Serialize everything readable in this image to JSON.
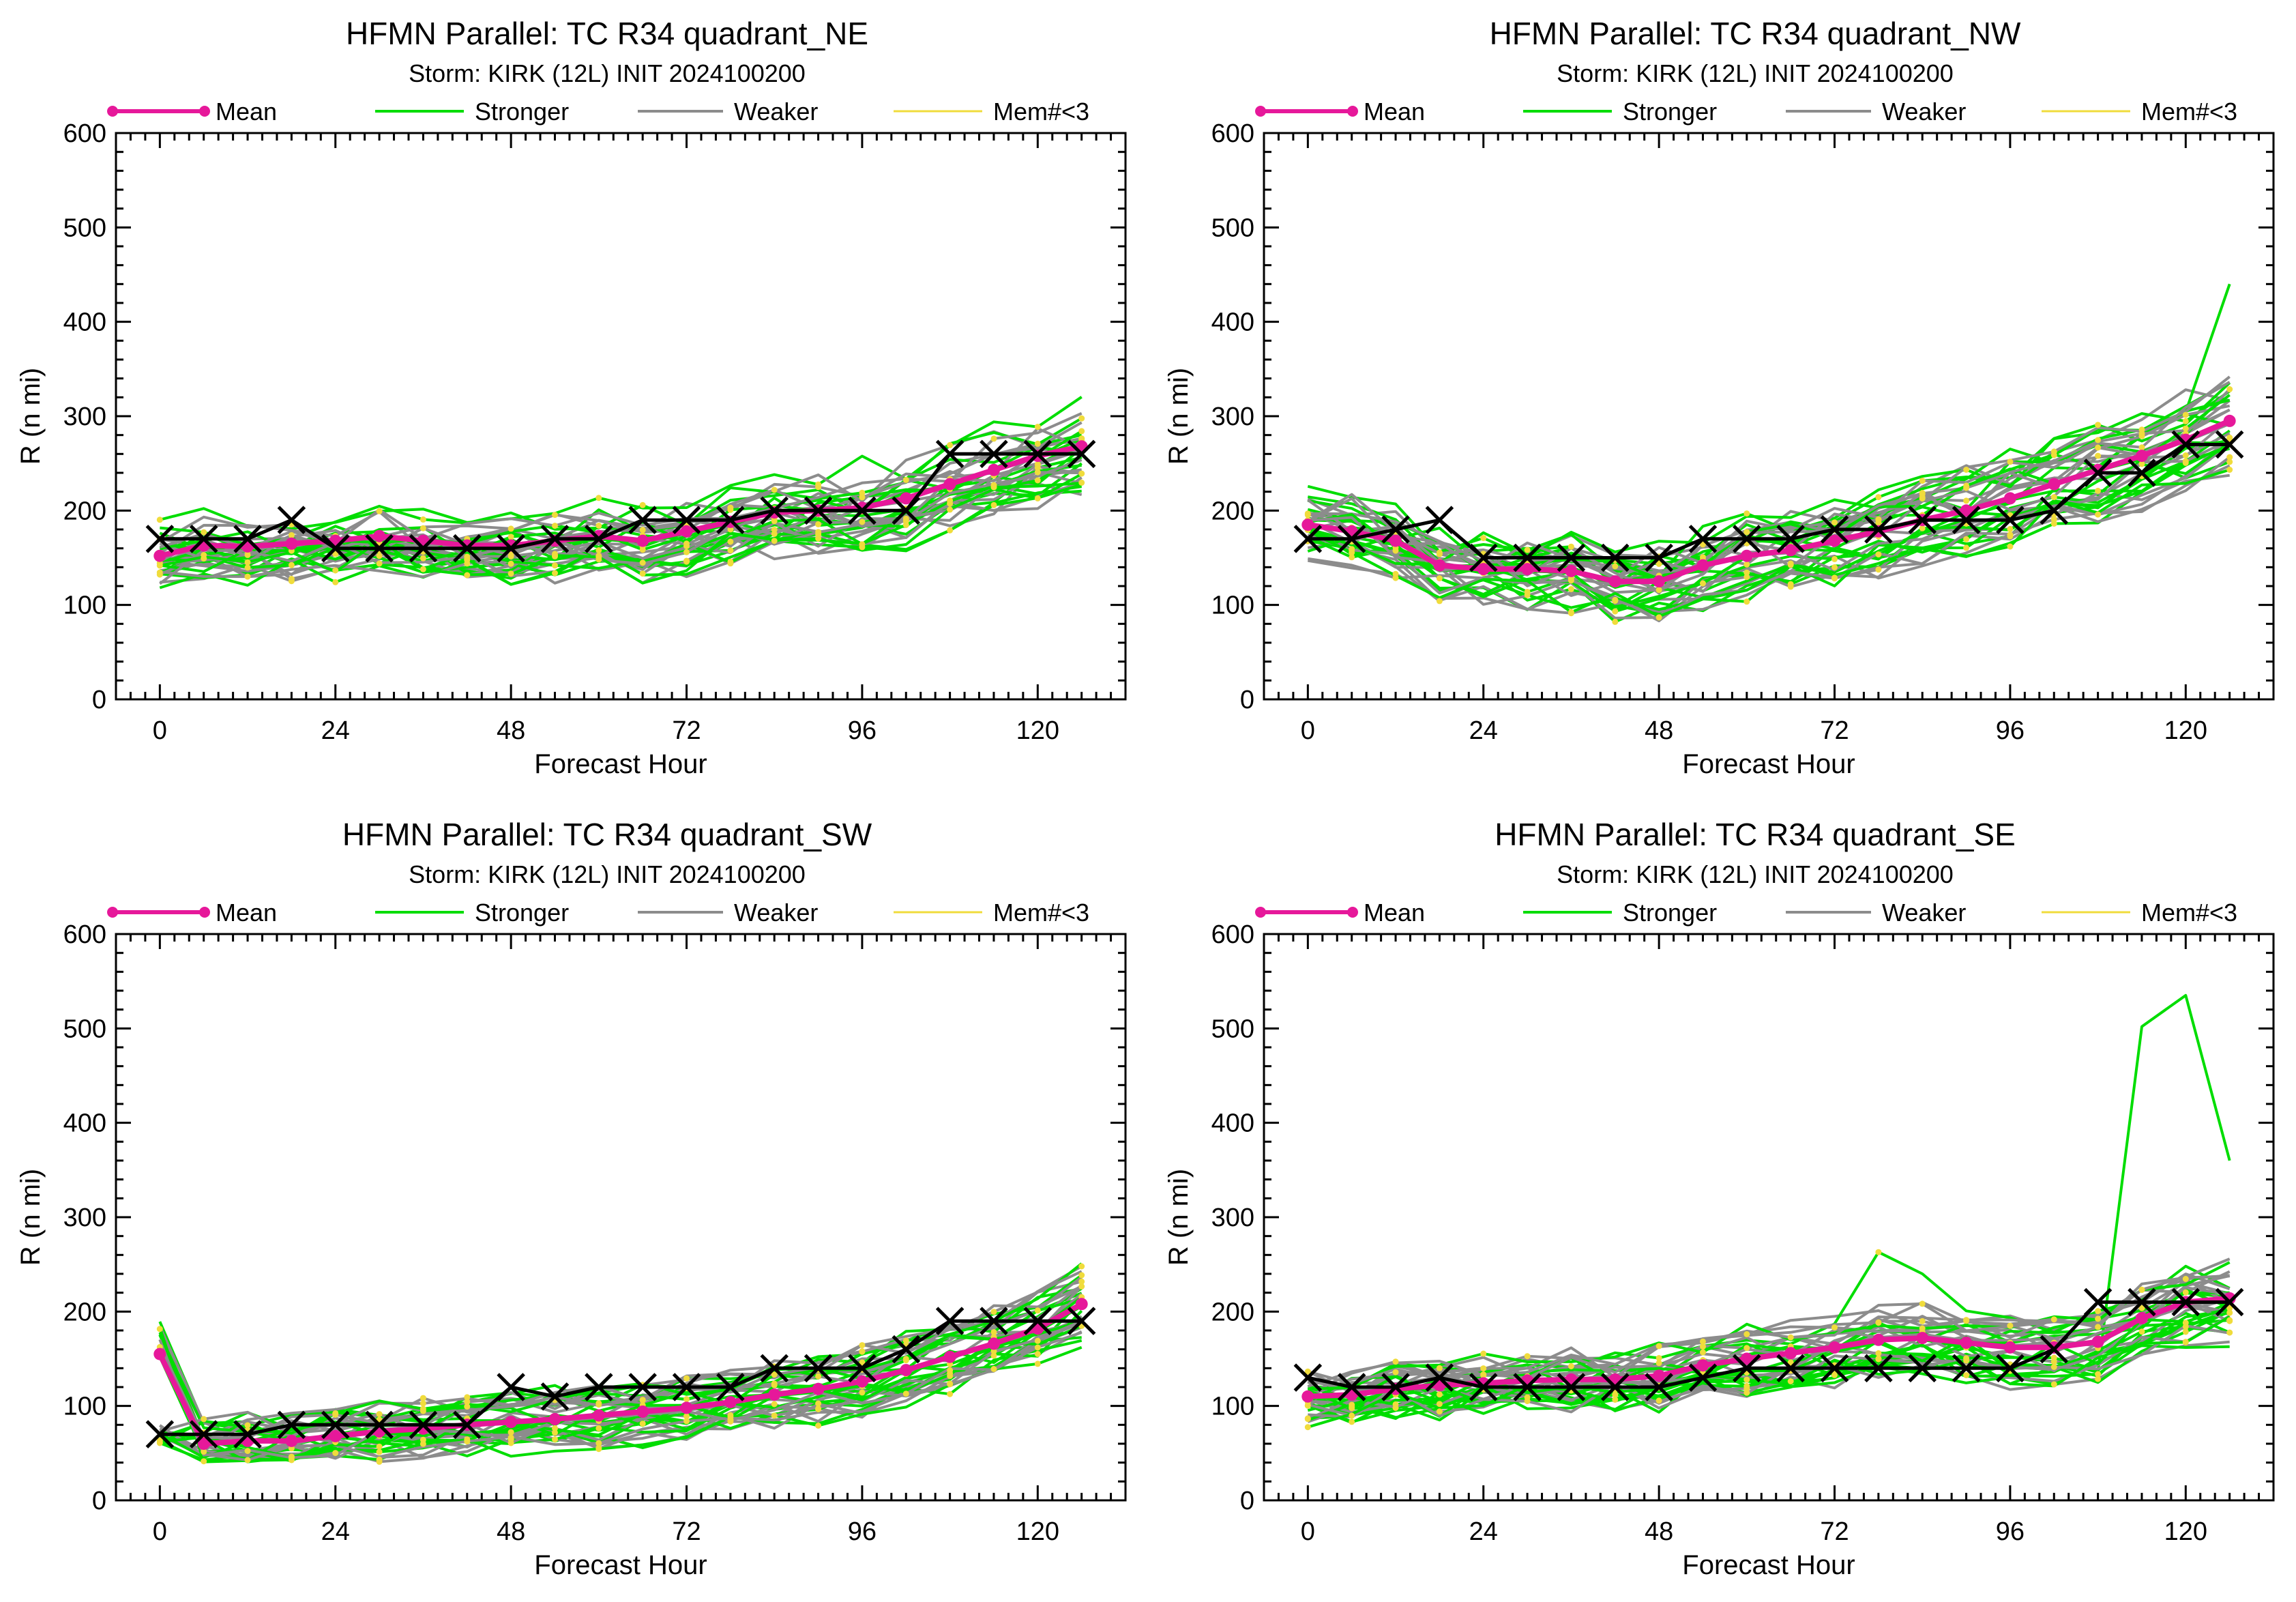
{
  "legend": {
    "mean": "Mean",
    "stronger": "Stronger",
    "weaker": "Weaker",
    "mem": "Mem#<3"
  },
  "colors": {
    "mean": "#e6189a",
    "stronger": "#00dd00",
    "weaker": "#8c8c8c",
    "mem": "#f0dc3c",
    "best_track": "#000000"
  },
  "chart_data": [
    {
      "type": "line",
      "title": "HFMN Parallel: TC  R34 quadrant_NE",
      "subtitle": "Storm: KIRK (12L) INIT 2024100200",
      "xlabel": "Forecast Hour",
      "ylabel": "R (n mi)",
      "xlim": [
        -6,
        132
      ],
      "ylim": [
        0,
        600
      ],
      "xticks": [
        0,
        24,
        48,
        72,
        96,
        120
      ],
      "yticks": [
        0,
        100,
        200,
        300,
        400,
        500,
        600
      ],
      "x": [
        0,
        6,
        12,
        18,
        24,
        30,
        36,
        42,
        48,
        54,
        60,
        66,
        72,
        78,
        84,
        90,
        96,
        102,
        108,
        114,
        120,
        126
      ],
      "mean": [
        152,
        163,
        162,
        165,
        168,
        173,
        168,
        163,
        163,
        168,
        173,
        168,
        178,
        188,
        198,
        200,
        203,
        213,
        228,
        243,
        258,
        268
      ],
      "best_track": [
        170,
        170,
        170,
        190,
        160,
        160,
        160,
        160,
        160,
        170,
        170,
        190,
        190,
        190,
        200,
        200,
        200,
        200,
        260,
        260,
        260,
        260
      ],
      "spread": 28,
      "seed": 11
    },
    {
      "type": "line",
      "title": "HFMN Parallel: TC  R34 quadrant_NW",
      "subtitle": "Storm: KIRK (12L) INIT 2024100200",
      "xlabel": "Forecast Hour",
      "ylabel": "R (n mi)",
      "xlim": [
        -6,
        132
      ],
      "ylim": [
        0,
        600
      ],
      "xticks": [
        0,
        24,
        48,
        72,
        96,
        120
      ],
      "yticks": [
        0,
        100,
        200,
        300,
        400,
        500,
        600
      ],
      "x": [
        0,
        6,
        12,
        18,
        24,
        30,
        36,
        42,
        48,
        54,
        60,
        66,
        72,
        78,
        84,
        90,
        96,
        102,
        108,
        114,
        120,
        126
      ],
      "mean": [
        185,
        178,
        168,
        142,
        138,
        138,
        136,
        125,
        125,
        142,
        152,
        158,
        168,
        178,
        190,
        200,
        213,
        228,
        243,
        258,
        275,
        295
      ],
      "best_track": [
        170,
        170,
        180,
        190,
        150,
        150,
        150,
        150,
        150,
        170,
        170,
        170,
        180,
        180,
        190,
        190,
        190,
        200,
        240,
        240,
        270,
        270
      ],
      "spread": 30,
      "seed": 23
    },
    {
      "type": "line",
      "title": "HFMN Parallel: TC  R34 quadrant_SW",
      "subtitle": "Storm: KIRK (12L) INIT 2024100200",
      "xlabel": "Forecast Hour",
      "ylabel": "R (n mi)",
      "xlim": [
        -6,
        132
      ],
      "ylim": [
        0,
        600
      ],
      "xticks": [
        0,
        24,
        48,
        72,
        96,
        120
      ],
      "yticks": [
        0,
        100,
        200,
        300,
        400,
        500,
        600
      ],
      "x": [
        0,
        6,
        12,
        18,
        24,
        30,
        36,
        42,
        48,
        54,
        60,
        66,
        72,
        78,
        84,
        90,
        96,
        102,
        108,
        114,
        120,
        126
      ],
      "mean": [
        155,
        60,
        63,
        63,
        68,
        73,
        76,
        80,
        83,
        86,
        90,
        94,
        98,
        104,
        112,
        118,
        126,
        138,
        152,
        166,
        182,
        208
      ],
      "best_track": [
        70,
        70,
        70,
        80,
        80,
        80,
        80,
        80,
        120,
        110,
        120,
        120,
        120,
        120,
        140,
        140,
        140,
        160,
        190,
        190,
        190,
        190
      ],
      "spread": 22,
      "seed": 37
    },
    {
      "type": "line",
      "title": "HFMN Parallel: TC  R34 quadrant_SE",
      "subtitle": "Storm: KIRK (12L) INIT 2024100200",
      "xlabel": "Forecast Hour",
      "ylabel": "R (n mi)",
      "xlim": [
        -6,
        132
      ],
      "ylim": [
        0,
        600
      ],
      "xticks": [
        0,
        24,
        48,
        72,
        96,
        120
      ],
      "yticks": [
        0,
        100,
        200,
        300,
        400,
        500,
        600
      ],
      "x": [
        0,
        6,
        12,
        18,
        24,
        30,
        36,
        42,
        48,
        54,
        60,
        66,
        72,
        78,
        84,
        90,
        96,
        102,
        108,
        114,
        120,
        126
      ],
      "mean": [
        110,
        112,
        118,
        122,
        124,
        127,
        128,
        128,
        132,
        143,
        150,
        156,
        162,
        170,
        172,
        167,
        162,
        162,
        168,
        193,
        210,
        214
      ],
      "best_track": [
        130,
        120,
        120,
        130,
        120,
        120,
        120,
        120,
        120,
        130,
        140,
        140,
        140,
        140,
        140,
        140,
        140,
        160,
        210,
        210,
        210,
        210
      ],
      "spread": 25,
      "seed": 53
    }
  ]
}
